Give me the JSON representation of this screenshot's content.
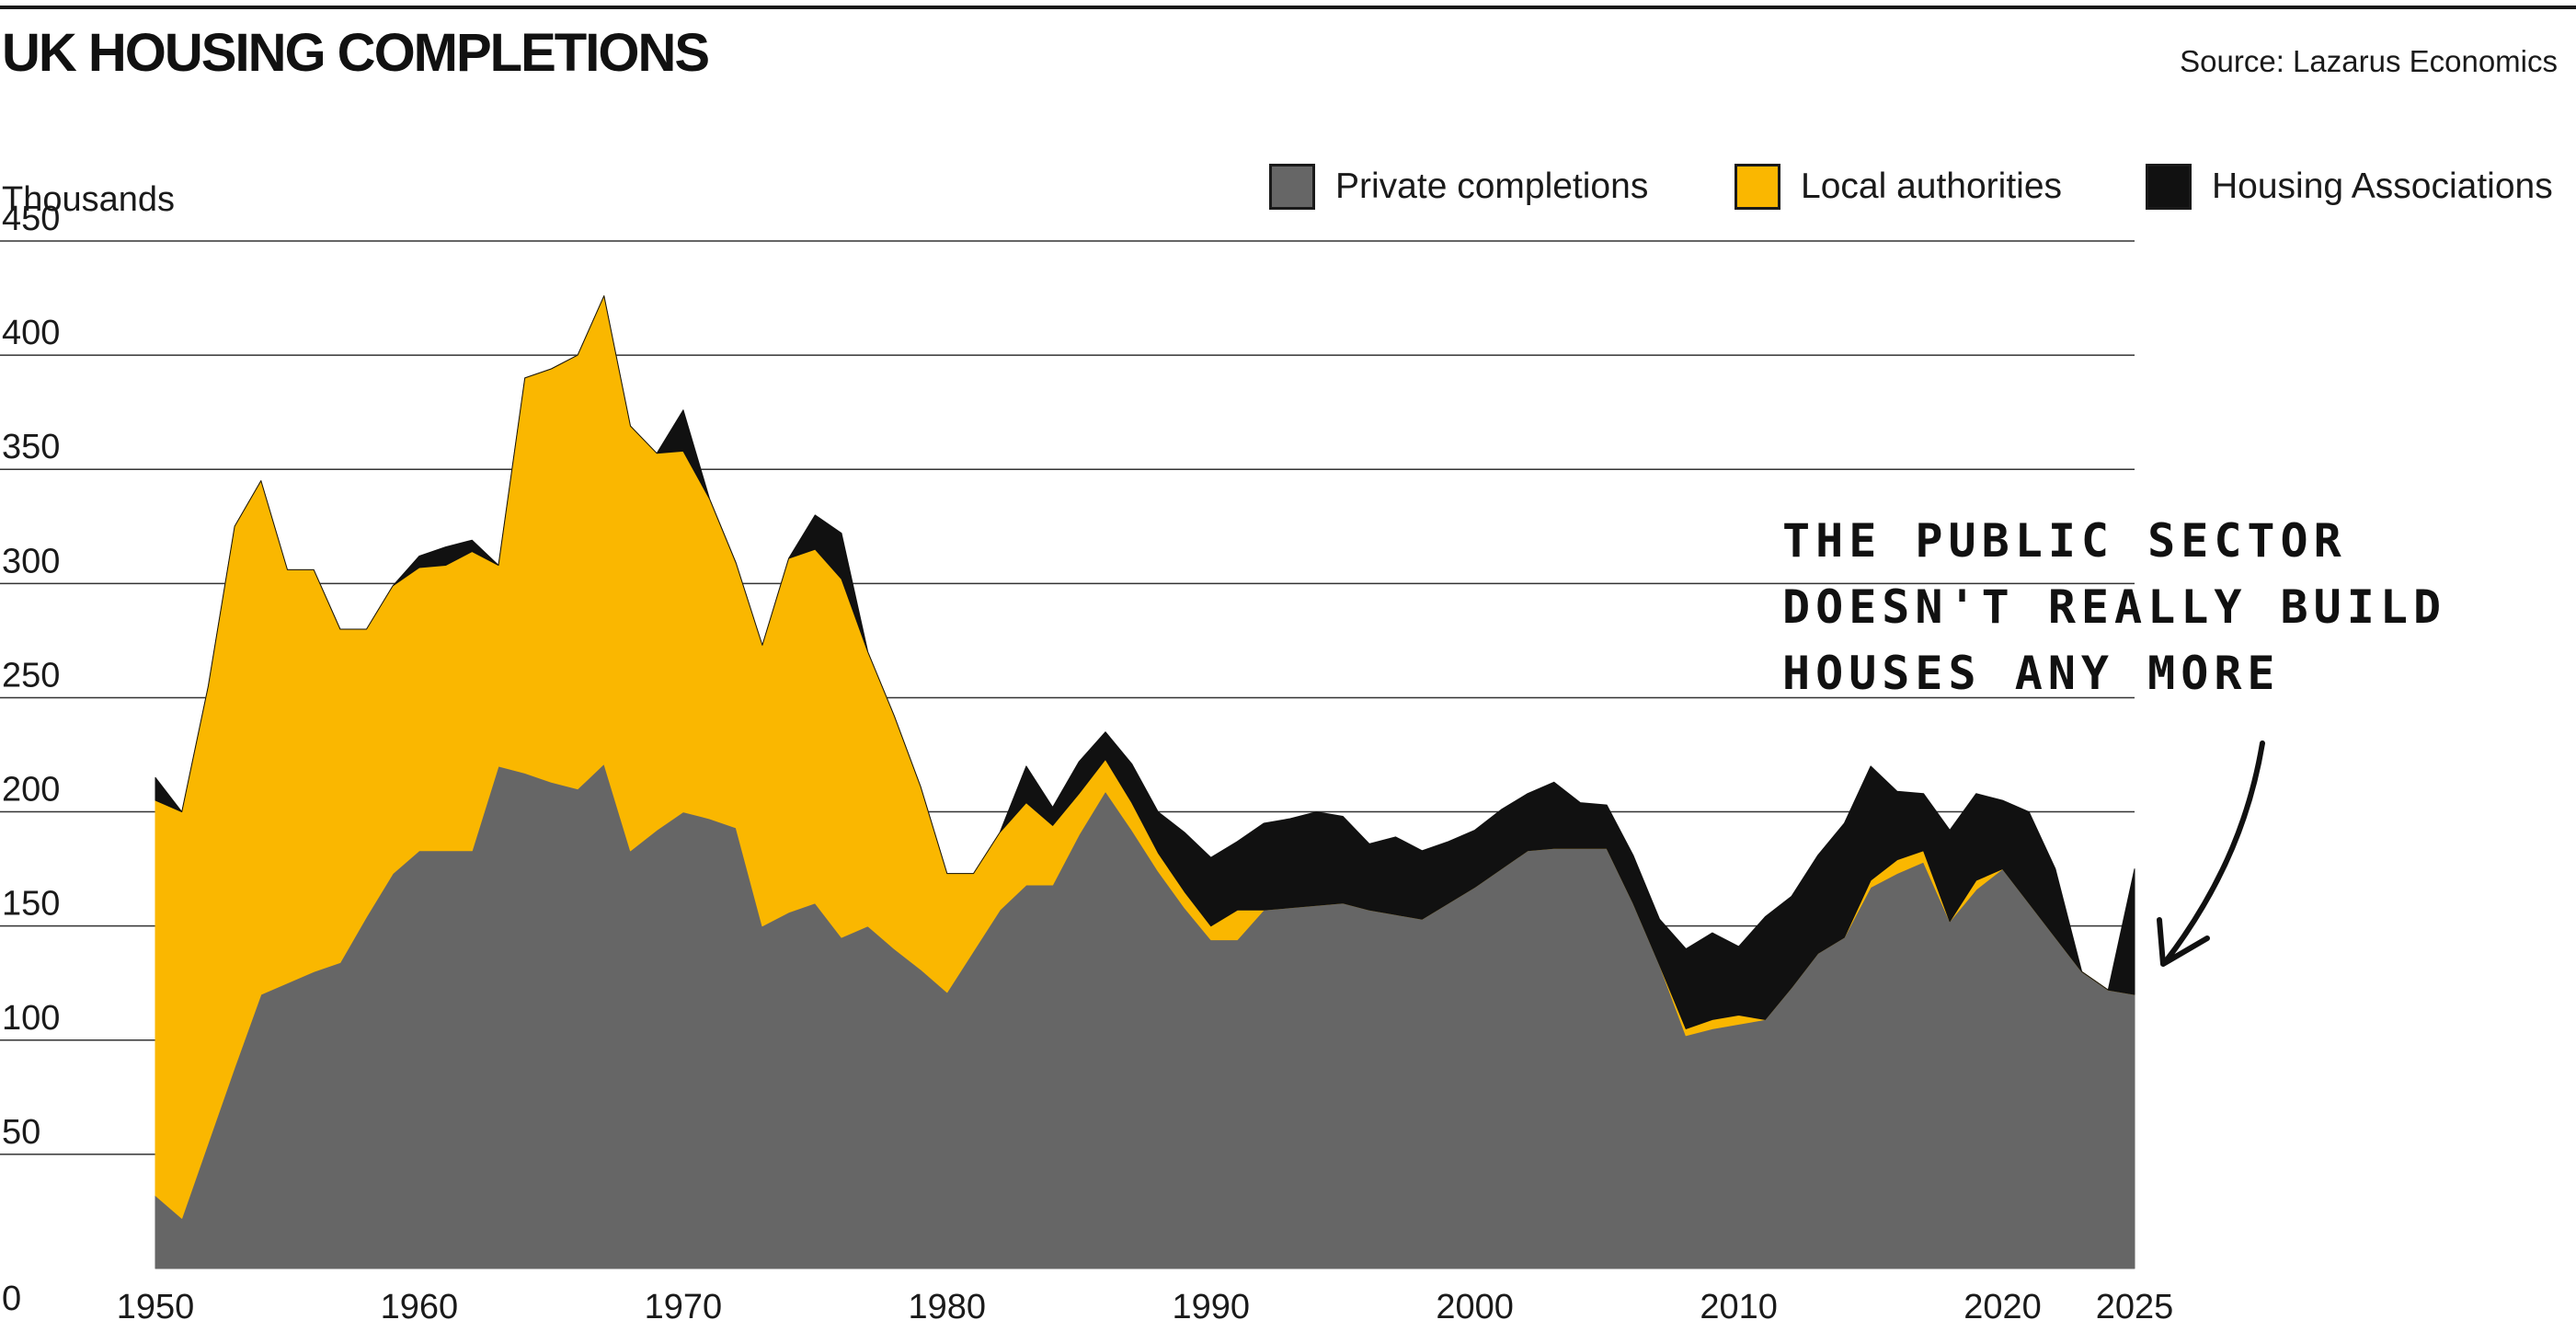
{
  "header": {
    "title": "UK HOUSING COMPLETIONS",
    "source": "Source: Lazarus Economics"
  },
  "colors": {
    "private": "#666666",
    "local": "#FAB700",
    "associations": "#111111",
    "grid": "#333333"
  },
  "chart_data": {
    "type": "area",
    "stacked": true,
    "title": "UK HOUSING COMPLETIONS",
    "ylabel": "Thousands",
    "xlabel": "",
    "ylim": [
      0,
      450
    ],
    "yticks": [
      0,
      50,
      100,
      150,
      200,
      250,
      300,
      350,
      400,
      450
    ],
    "xlim": [
      1950,
      2025
    ],
    "xticks": [
      1950,
      1960,
      1970,
      1980,
      1990,
      2000,
      2010,
      2020,
      2025
    ],
    "legend_position": "top-right",
    "x": [
      1950,
      1951,
      1952,
      1953,
      1954,
      1955,
      1956,
      1957,
      1958,
      1959,
      1960,
      1961,
      1962,
      1963,
      1964,
      1965,
      1966,
      1967,
      1968,
      1969,
      1970,
      1971,
      1972,
      1973,
      1974,
      1975,
      1976,
      1977,
      1978,
      1979,
      1980,
      1981,
      1982,
      1983,
      1984,
      1985,
      1986,
      1987,
      1988,
      1989,
      1990,
      1991,
      1992,
      1993,
      1994,
      1995,
      1996,
      1997,
      1998,
      1999,
      2000,
      2001,
      2002,
      2003,
      2004,
      2005,
      2006,
      2007,
      2008,
      2009,
      2010,
      2011,
      2012,
      2013,
      2014,
      2015,
      2016,
      2017,
      2018,
      2019,
      2020,
      2021,
      2022,
      2023,
      2024,
      2025
    ],
    "series": [
      {
        "name": "Private completions",
        "values": [
          32,
          22,
          55,
          88,
          120,
          125,
          130,
          134,
          154,
          173,
          183,
          183,
          183,
          220,
          217,
          213,
          210,
          221,
          183,
          192,
          200,
          197,
          193,
          150,
          156,
          160,
          145,
          150,
          140,
          131,
          121,
          139,
          157,
          168,
          168,
          190,
          209,
          192,
          174,
          158,
          144,
          144,
          157,
          158,
          159,
          160,
          157,
          155,
          153,
          160,
          167,
          175,
          183,
          184,
          184,
          184,
          160,
          133,
          102,
          105,
          107,
          109,
          123,
          138,
          145,
          167,
          173,
          178,
          152,
          166,
          175,
          160,
          145,
          130,
          122,
          120
        ]
      },
      {
        "name": "Local authorities",
        "values": [
          173,
          178,
          200,
          237,
          225,
          181,
          176,
          146,
          126,
          126,
          124,
          125,
          131,
          88,
          173,
          181,
          190,
          205,
          186,
          165,
          158,
          140,
          116,
          123,
          155,
          155,
          157,
          120,
          102,
          80,
          52,
          34,
          34,
          36,
          26,
          18,
          14,
          12,
          8,
          7,
          6,
          13,
          0,
          0,
          0,
          0,
          0,
          0,
          0,
          0,
          0,
          0,
          0,
          0,
          0,
          0,
          0,
          0,
          3,
          4,
          4,
          0,
          0,
          0,
          0,
          3,
          6,
          5,
          0,
          4,
          0,
          0,
          0,
          0,
          0,
          0
        ]
      },
      {
        "name": "Housing Associations",
        "values": [
          10,
          0,
          0,
          0,
          0,
          0,
          0,
          0,
          0,
          0,
          5,
          8,
          5,
          0,
          0,
          0,
          0,
          0,
          0,
          0,
          18,
          0,
          0,
          0,
          0,
          15,
          20,
          0,
          0,
          0,
          0,
          0,
          0,
          16,
          8,
          14,
          12,
          17,
          18,
          26,
          30,
          30,
          38,
          39,
          41,
          38,
          29,
          34,
          30,
          27,
          25,
          26,
          25,
          29,
          20,
          19,
          21,
          20,
          35,
          38,
          30,
          45,
          40,
          43,
          50,
          50,
          30,
          25,
          40,
          38,
          30,
          40,
          30,
          0,
          0,
          55
        ]
      }
    ]
  },
  "annotation": {
    "lines": [
      "THE PUBLIC SECTOR",
      "DOESN'T REALLY BUILD",
      "HOUSES ANY MORE"
    ]
  }
}
